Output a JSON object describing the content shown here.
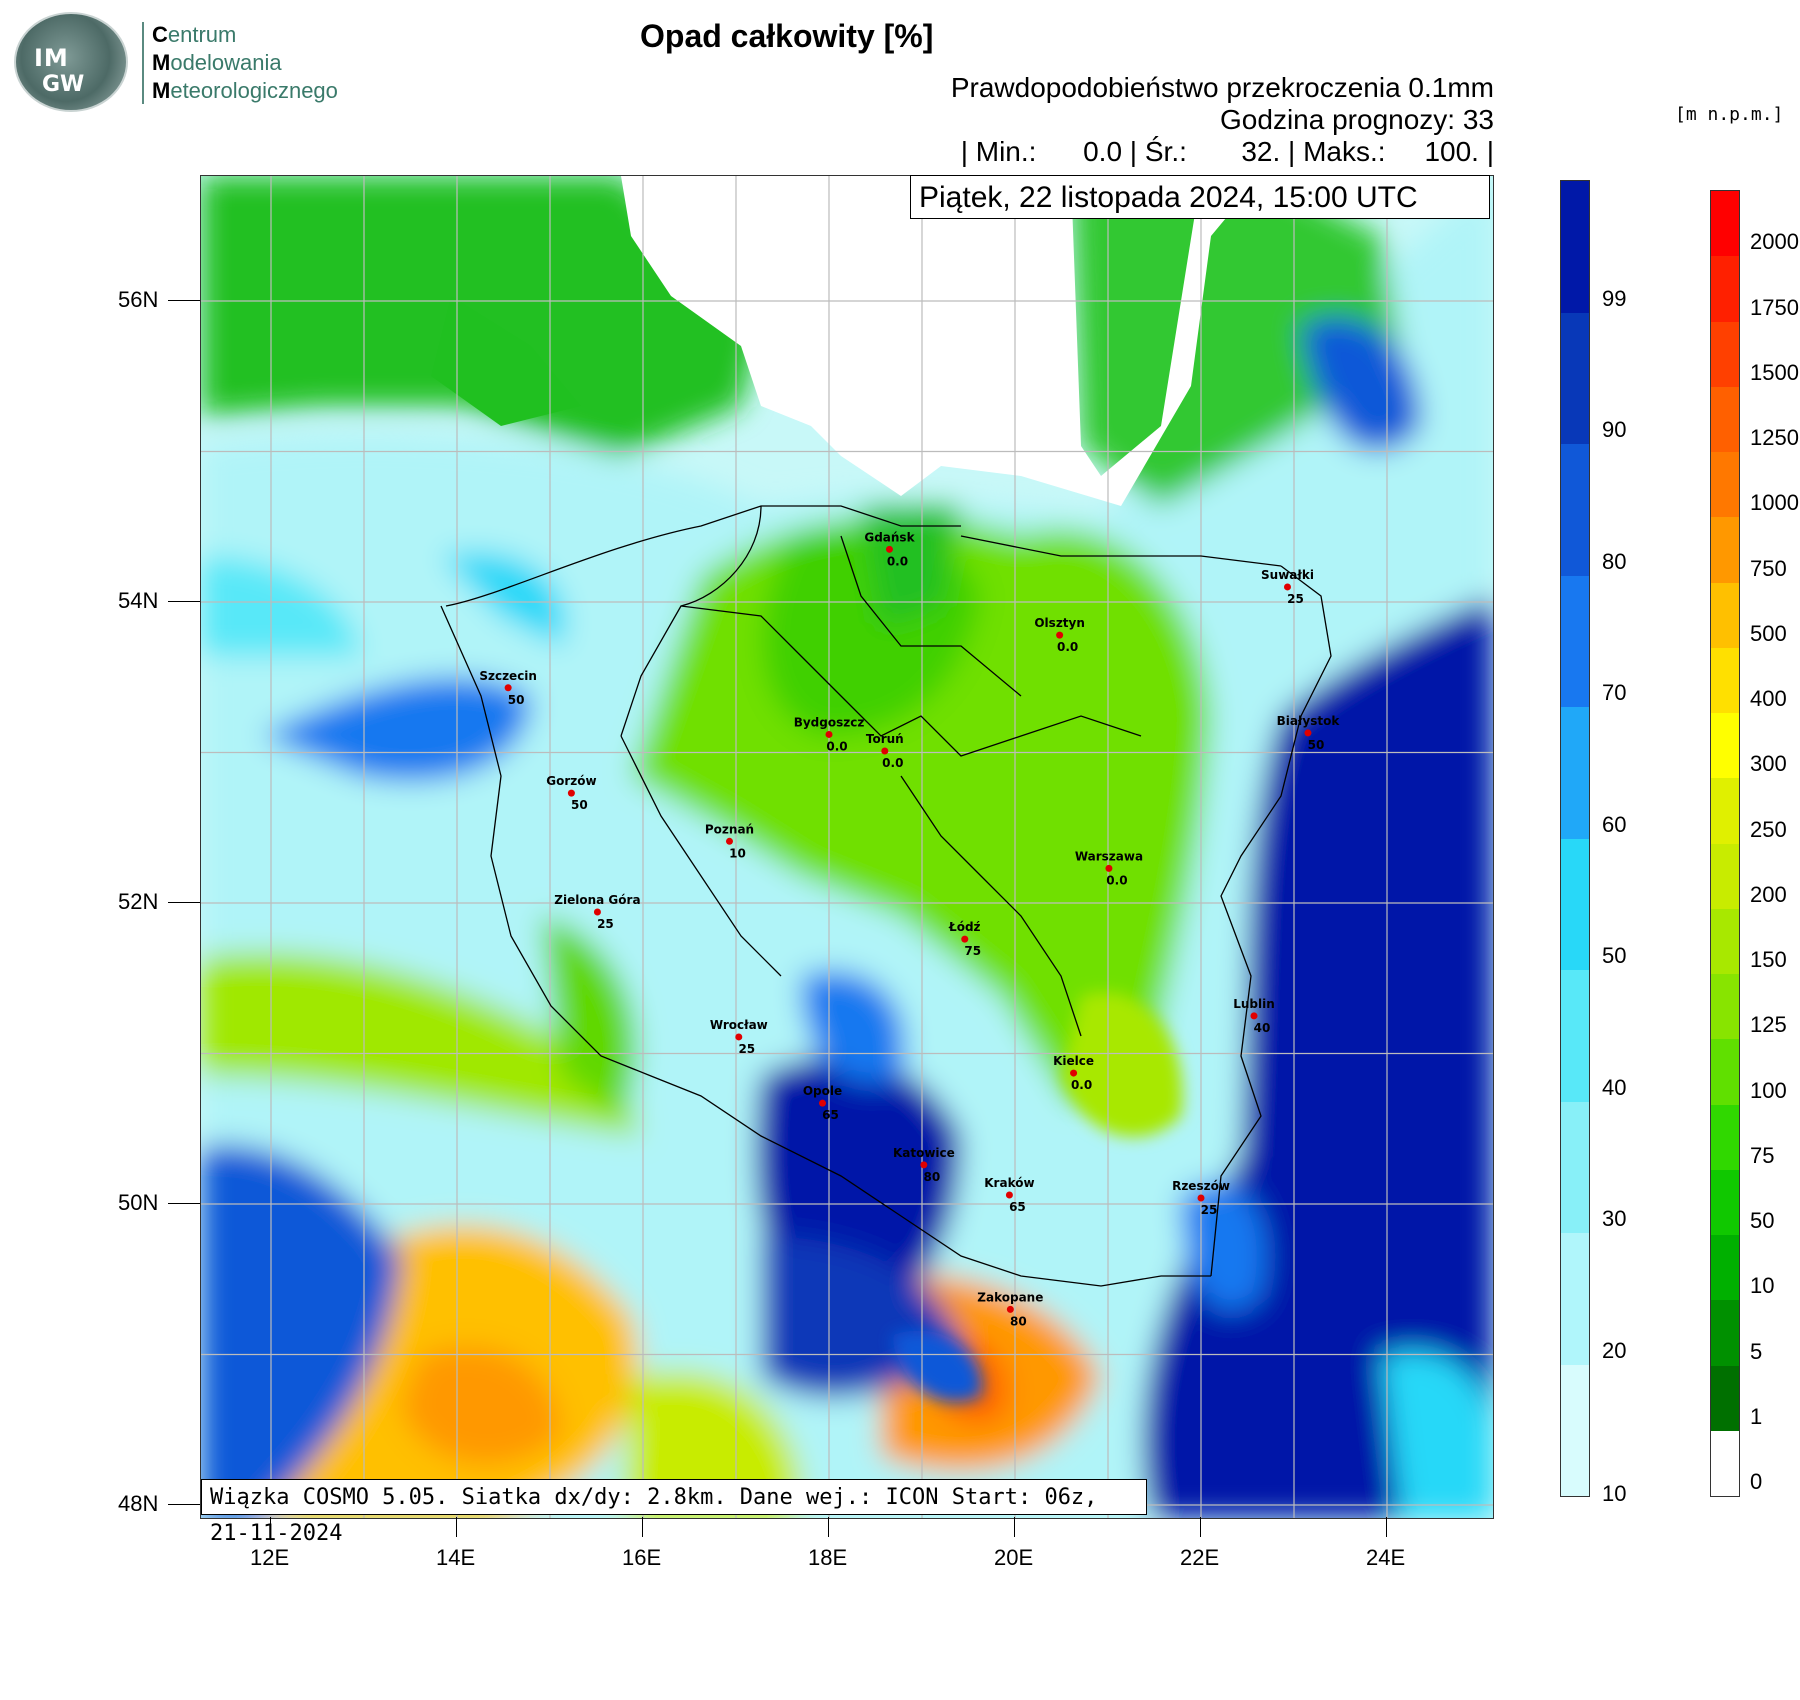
{
  "logo": {
    "letters_top": "IM",
    "letters_bottom": "GW",
    "line1_initial": "C",
    "line1_rest": "entrum",
    "line2_initial": "M",
    "line2_rest": "odelowania",
    "line3_initial": "M",
    "line3_rest": "eteorologicznego"
  },
  "header": {
    "title": "Opad całkowity [%]",
    "line1": "Prawdopodobieństwo przekroczenia 0.1mm",
    "line2": "Godzina prognozy: 33",
    "line3": "| Min.:      0.0 | Śr.:       32. | Maks.:     100. |"
  },
  "date_box": "Piątek, 22 listopada 2024, 15:00 UTC",
  "footer": "Wiązka COSMO 5.05. Siatka dx/dy: 2.8km. Dane wej.: ICON Start: 06z, 21-11-2024",
  "lat_labels": [
    "56N",
    "54N",
    "52N",
    "50N",
    "48N"
  ],
  "lon_labels": [
    "12E",
    "14E",
    "16E",
    "18E",
    "20E",
    "22E",
    "24E"
  ],
  "cities": [
    {
      "name": "Gdańsk",
      "value": "0.0",
      "lon": 18.65,
      "lat": 54.35
    },
    {
      "name": "Suwałki",
      "value": "25",
      "lon": 22.93,
      "lat": 54.1
    },
    {
      "name": "Olsztyn",
      "value": "0.0",
      "lon": 20.48,
      "lat": 53.78
    },
    {
      "name": "Szczecin",
      "value": "50",
      "lon": 14.55,
      "lat": 53.43
    },
    {
      "name": "Białystok",
      "value": "50",
      "lon": 23.15,
      "lat": 53.13
    },
    {
      "name": "Bydgoszcz",
      "value": "0.0",
      "lon": 18.0,
      "lat": 53.12
    },
    {
      "name": "Toruń",
      "value": "0.0",
      "lon": 18.6,
      "lat": 53.01
    },
    {
      "name": "Gorzów",
      "value": "50",
      "lon": 15.23,
      "lat": 52.73
    },
    {
      "name": "Poznań",
      "value": "10",
      "lon": 16.93,
      "lat": 52.41
    },
    {
      "name": "Warszawa",
      "value": "0.0",
      "lon": 21.01,
      "lat": 52.23
    },
    {
      "name": "Zielona Góra",
      "value": "25",
      "lon": 15.51,
      "lat": 51.94
    },
    {
      "name": "Łódź",
      "value": "75",
      "lon": 19.46,
      "lat": 51.76
    },
    {
      "name": "Lublin",
      "value": "40",
      "lon": 22.57,
      "lat": 51.25
    },
    {
      "name": "Wrocław",
      "value": "25",
      "lon": 17.03,
      "lat": 51.11
    },
    {
      "name": "Kielce",
      "value": "0.0",
      "lon": 20.63,
      "lat": 50.87
    },
    {
      "name": "Opole",
      "value": "65",
      "lon": 17.93,
      "lat": 50.67
    },
    {
      "name": "Katowice",
      "value": "80",
      "lon": 19.02,
      "lat": 50.26
    },
    {
      "name": "Kraków",
      "value": "65",
      "lon": 19.94,
      "lat": 50.06
    },
    {
      "name": "Rzeszów",
      "value": "25",
      "lon": 22.0,
      "lat": 50.04
    },
    {
      "name": "Zakopane",
      "value": "80",
      "lon": 19.95,
      "lat": 49.3
    }
  ],
  "prob_scale": {
    "labels": [
      "99",
      "90",
      "80",
      "70",
      "60",
      "50",
      "40",
      "30",
      "20",
      "10"
    ],
    "colors": [
      "#0018a8",
      "#0838b8",
      "#1058d8",
      "#1878f0",
      "#20a8f8",
      "#28d8f8",
      "#58e8f8",
      "#88f0f8",
      "#b0f6fb",
      "#d8fcfd"
    ]
  },
  "height_scale": {
    "unit": "[m n.p.m.]",
    "labels": [
      "2000",
      "1750",
      "1500",
      "1250",
      "1000",
      "750",
      "500",
      "400",
      "300",
      "250",
      "200",
      "150",
      "125",
      "100",
      "75",
      "50",
      "10",
      "5",
      "1",
      "0"
    ],
    "colors": [
      "#ff0000",
      "#ff2000",
      "#ff4000",
      "#ff6000",
      "#ff7800",
      "#ff9800",
      "#ffc000",
      "#ffe000",
      "#ffff00",
      "#e0f000",
      "#c8ec00",
      "#a8e800",
      "#88e400",
      "#60e000",
      "#30d800",
      "#10c800",
      "#00b000",
      "#009000",
      "#007000",
      "#ffffff"
    ]
  }
}
